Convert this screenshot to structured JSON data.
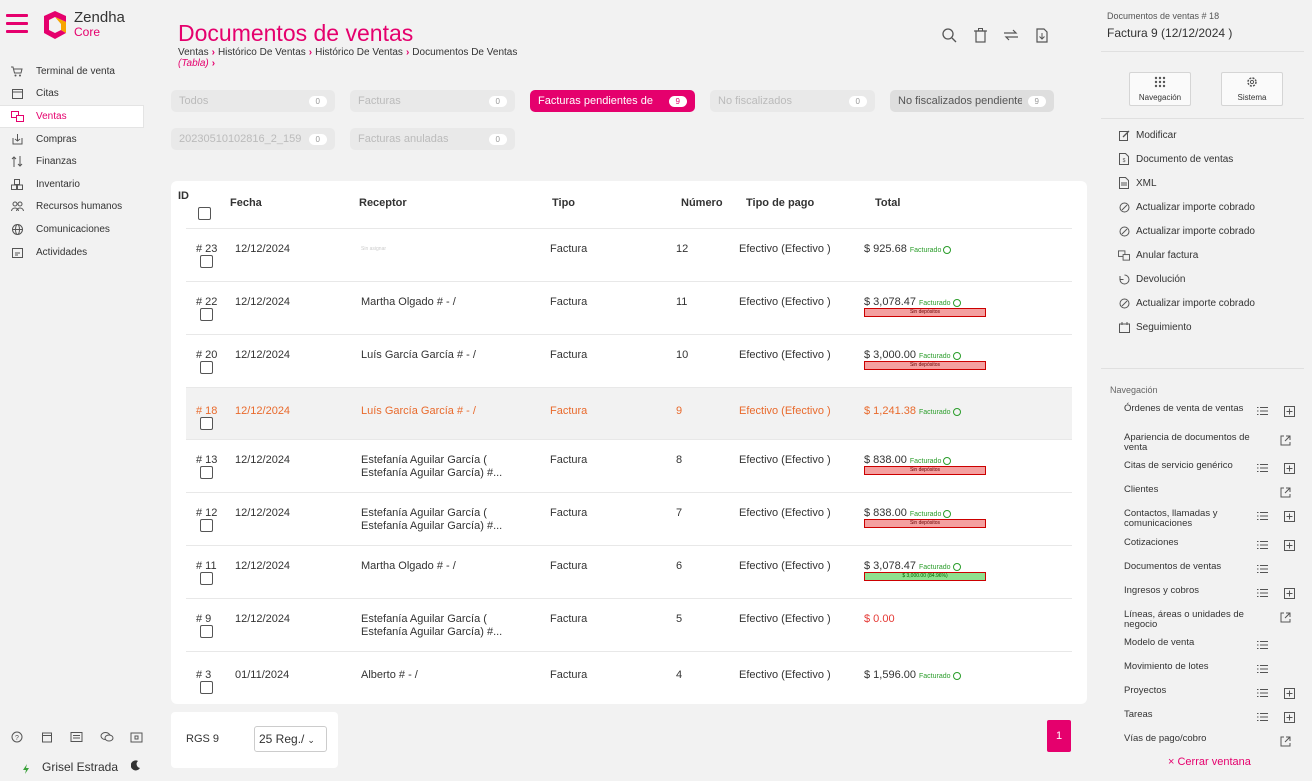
{
  "app": {
    "brand_name": "Zendha",
    "brand_sub": "Core",
    "brand_color": "#e5006d"
  },
  "sidebar": {
    "items": [
      {
        "label": "Terminal de venta",
        "icon": "cart-icon"
      },
      {
        "label": "Citas",
        "icon": "calendar-icon"
      },
      {
        "label": "Ventas",
        "icon": "sales-icon",
        "active": true
      },
      {
        "label": "Compras",
        "icon": "purchases-icon"
      },
      {
        "label": "Finanzas",
        "icon": "finance-icon"
      },
      {
        "label": "Inventario",
        "icon": "inventory-icon"
      },
      {
        "label": "Recursos humanos",
        "icon": "people-icon"
      },
      {
        "label": "Comunicaciones",
        "icon": "globe-icon"
      },
      {
        "label": "Actividades",
        "icon": "activities-icon"
      }
    ],
    "user_name": "Grisel Estrada"
  },
  "header": {
    "title": "Documentos de ventas",
    "breadcrumb": [
      "Ventas",
      "Histórico De Ventas",
      "Histórico De Ventas",
      "Documentos De Ventas"
    ],
    "view_label": "(Tabla)"
  },
  "filters": [
    {
      "label": "Todos",
      "count": "0",
      "style": "plain"
    },
    {
      "label": "Facturas",
      "count": "0",
      "style": "plain"
    },
    {
      "label": "Facturas pendientes de",
      "count": "9",
      "style": "pink"
    },
    {
      "label": "No fiscalizados",
      "count": "0",
      "style": "plain"
    },
    {
      "label": "No fiscalizados pendientes",
      "count": "9",
      "style": "dark"
    },
    {
      "label": "20230510102816_2_159",
      "count": "0",
      "style": "plain"
    },
    {
      "label": "Facturas anuladas",
      "count": "0",
      "style": "plain"
    }
  ],
  "table": {
    "headers": [
      "ID",
      "Fecha",
      "Receptor",
      "Tipo",
      "Número",
      "Tipo de pago",
      "Total"
    ],
    "rows": [
      {
        "id": "# 23",
        "fecha": "12/12/2024",
        "receptor": "Sin asignar",
        "tipo": "Factura",
        "numero": "12",
        "pago": "Efectivo (Efectivo )",
        "total": "$ 925.68",
        "status": "Facturado",
        "deposit": ""
      },
      {
        "id": "# 22",
        "fecha": "12/12/2024",
        "receptor": "Martha Olgado # - /",
        "tipo": "Factura",
        "numero": "11",
        "pago": "Efectivo (Efectivo )",
        "total": "$ 3,078.47",
        "status": "Facturado",
        "deposit": "Sin depósitos"
      },
      {
        "id": "# 20",
        "fecha": "12/12/2024",
        "receptor": "Luís García García # - /",
        "tipo": "Factura",
        "numero": "10",
        "pago": "Efectivo (Efectivo )",
        "total": "$ 3,000.00",
        "status": "Facturado",
        "deposit": "Sin depósitos"
      },
      {
        "id": "# 18",
        "fecha": "12/12/2024",
        "receptor": "Luís García García # - /",
        "tipo": "Factura",
        "numero": "9",
        "pago": "Efectivo (Efectivo )",
        "total": "$ 1,241.38",
        "status": "Facturado",
        "deposit": "",
        "selected": true
      },
      {
        "id": "# 13",
        "fecha": "12/12/2024",
        "receptor": "Estefanía Aguilar García (\nEstefanía Aguilar García) #...",
        "tipo": "Factura",
        "numero": "8",
        "pago": "Efectivo (Efectivo )",
        "total": "$ 838.00",
        "status": "Facturado",
        "deposit": "Sin depósitos"
      },
      {
        "id": "# 12",
        "fecha": "12/12/2024",
        "receptor": "Estefanía Aguilar García (\nEstefanía Aguilar García) #...",
        "tipo": "Factura",
        "numero": "7",
        "pago": "Efectivo (Efectivo )",
        "total": "$ 838.00",
        "status": "Facturado",
        "deposit": "Sin depósitos"
      },
      {
        "id": "# 11",
        "fecha": "12/12/2024",
        "receptor": "Martha Olgado # - /",
        "tipo": "Factura",
        "numero": "6",
        "pago": "Efectivo (Efectivo )",
        "total": "$ 3,078.47",
        "status": "Facturado",
        "deposit": "$ 3,000.00 (84.96%)",
        "deposit_green": true
      },
      {
        "id": "# 9",
        "fecha": "12/12/2024",
        "receptor": "Estefanía Aguilar García (\nEstefanía Aguilar García) #...",
        "tipo": "Factura",
        "numero": "5",
        "pago": "Efectivo (Efectivo )",
        "total": "$ 0.00",
        "status": "",
        "deposit": "",
        "total_red": true
      },
      {
        "id": "# 3",
        "fecha": "01/11/2024",
        "receptor": "Alberto # - /",
        "tipo": "Factura",
        "numero": "4",
        "pago": "Efectivo (Efectivo )",
        "total": "$ 1,596.00",
        "status": "Facturado",
        "deposit": ""
      }
    ]
  },
  "footer": {
    "rgs": "RGS 9",
    "per_page": "25 Reg./",
    "page": "1"
  },
  "right_panel": {
    "subtitle": "Documentos de ventas # 18",
    "title": "Factura 9 (12/12/2024 )",
    "buttons": [
      {
        "label": "Navegación",
        "icon": "grid-icon"
      },
      {
        "label": "Sistema",
        "icon": "gear-icon"
      }
    ],
    "actions": [
      {
        "label": "Modificar",
        "icon": "edit-icon"
      },
      {
        "label": "Documento de ventas",
        "icon": "document-icon"
      },
      {
        "label": "XML",
        "icon": "xml-icon"
      },
      {
        "label": "Actualizar importe cobrado",
        "icon": "update-icon"
      },
      {
        "label": "Actualizar importe cobrado",
        "icon": "update-icon"
      },
      {
        "label": "Anular factura",
        "icon": "cancel-invoice-icon"
      },
      {
        "label": "Devolución",
        "icon": "return-icon"
      },
      {
        "label": "Actualizar importe cobrado",
        "icon": "update-icon"
      },
      {
        "label": "Seguimiento",
        "icon": "tracking-icon"
      }
    ],
    "nav_heading": "Navegación",
    "nav_links": [
      {
        "label": "Órdenes de venta de ventas",
        "list": true,
        "add": true
      },
      {
        "label": "Apariencia de documentos de venta",
        "external": true
      },
      {
        "label": "Citas de servicio genérico",
        "list": true,
        "add": true
      },
      {
        "label": "Clientes",
        "external": true
      },
      {
        "label": "Contactos, llamadas y comunicaciones",
        "list": true,
        "add": true
      },
      {
        "label": "Cotizaciones",
        "list": true,
        "add": true
      },
      {
        "label": "Documentos de ventas",
        "list": true
      },
      {
        "label": "Ingresos y cobros",
        "list": true,
        "add": true
      },
      {
        "label": "Líneas, áreas o unidades de negocio",
        "external": true
      },
      {
        "label": "Modelo de venta",
        "list": true
      },
      {
        "label": "Movimiento de lotes",
        "list": true
      },
      {
        "label": "Proyectos",
        "list": true,
        "add": true
      },
      {
        "label": "Tareas",
        "list": true,
        "add": true
      },
      {
        "label": "Vías de pago/cobro",
        "external": true
      }
    ],
    "close_label": "× Cerrar ventana"
  }
}
